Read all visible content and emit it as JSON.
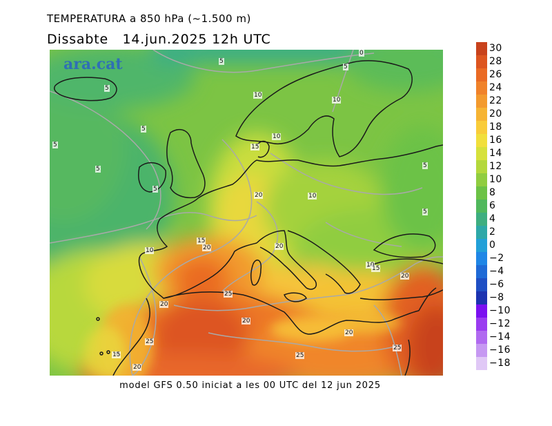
{
  "header": {
    "title": "TEMPERATURA a 850 hPa (~1.500 m)",
    "subtitle": "Dissabte   14.jun.2025 12h UTC"
  },
  "map": {
    "brand": "ara.cat",
    "isotherm_labels": [
      {
        "id": "arctic",
        "text": "0"
      },
      {
        "id": "norway-n",
        "text": "5"
      },
      {
        "id": "iceland",
        "text": "5"
      },
      {
        "id": "sea-n",
        "text": "5"
      },
      {
        "id": "atl-far",
        "text": "5"
      },
      {
        "id": "atl-mid",
        "text": "5"
      },
      {
        "id": "atl-w",
        "text": "5"
      },
      {
        "id": "ireland",
        "text": "5"
      },
      {
        "id": "atlantic-nw",
        "text": "5"
      },
      {
        "id": "norway-s",
        "text": "10"
      },
      {
        "id": "sweden",
        "text": "10"
      },
      {
        "id": "denmark",
        "text": "10"
      },
      {
        "id": "russia",
        "text": "5"
      },
      {
        "id": "germany",
        "text": "15"
      },
      {
        "id": "france-c",
        "text": "20"
      },
      {
        "id": "poland",
        "text": "10"
      },
      {
        "id": "biscay",
        "text": "15"
      },
      {
        "id": "spain-n",
        "text": "20"
      },
      {
        "id": "atlantic-e",
        "text": "10"
      },
      {
        "id": "italy",
        "text": "20"
      },
      {
        "id": "greece",
        "text": "10"
      },
      {
        "id": "turkey",
        "text": "15"
      },
      {
        "id": "aegean",
        "text": "20"
      },
      {
        "id": "morocco-n",
        "text": "20"
      },
      {
        "id": "algeria-n",
        "text": "25"
      },
      {
        "id": "algeria-s",
        "text": "20"
      },
      {
        "id": "libya",
        "text": "20"
      },
      {
        "id": "morocco-s",
        "text": "25"
      },
      {
        "id": "canary",
        "text": "15"
      },
      {
        "id": "sahara-w",
        "text": "20"
      },
      {
        "id": "sahara-c",
        "text": "25"
      },
      {
        "id": "egypt",
        "text": "25"
      }
    ]
  },
  "legend": {
    "items": [
      {
        "label": "30",
        "color": "#c8421c"
      },
      {
        "label": "28",
        "color": "#dd5520"
      },
      {
        "label": "26",
        "color": "#ea6a24"
      },
      {
        "label": "24",
        "color": "#f0822a"
      },
      {
        "label": "22",
        "color": "#f39a2e"
      },
      {
        "label": "20",
        "color": "#f6b434"
      },
      {
        "label": "18",
        "color": "#f9cc3a"
      },
      {
        "label": "16",
        "color": "#f1df3c"
      },
      {
        "label": "14",
        "color": "#d6e13c"
      },
      {
        "label": "12",
        "color": "#b4d83c"
      },
      {
        "label": "10",
        "color": "#90cd40"
      },
      {
        "label": "8",
        "color": "#6cc246"
      },
      {
        "label": "6",
        "color": "#50b85c"
      },
      {
        "label": "4",
        "color": "#3eae80"
      },
      {
        "label": "2",
        "color": "#2ea8a8"
      },
      {
        "label": "0",
        "color": "#22a0d8"
      },
      {
        "label": "−2",
        "color": "#1f86e6"
      },
      {
        "label": "−4",
        "color": "#1f6ad6"
      },
      {
        "label": "−6",
        "color": "#1f4fc4"
      },
      {
        "label": "−8",
        "color": "#1c33b0"
      },
      {
        "label": "−10",
        "color": "#7a10f0"
      },
      {
        "label": "−12",
        "color": "#9a3cf0"
      },
      {
        "label": "−14",
        "color": "#b06af0"
      },
      {
        "label": "−16",
        "color": "#c698f2"
      },
      {
        "label": "−18",
        "color": "#e0c8f6"
      }
    ]
  },
  "footer": "model GFS 0.50 iniciat a les 00 UTC del 12 jun 2025"
}
